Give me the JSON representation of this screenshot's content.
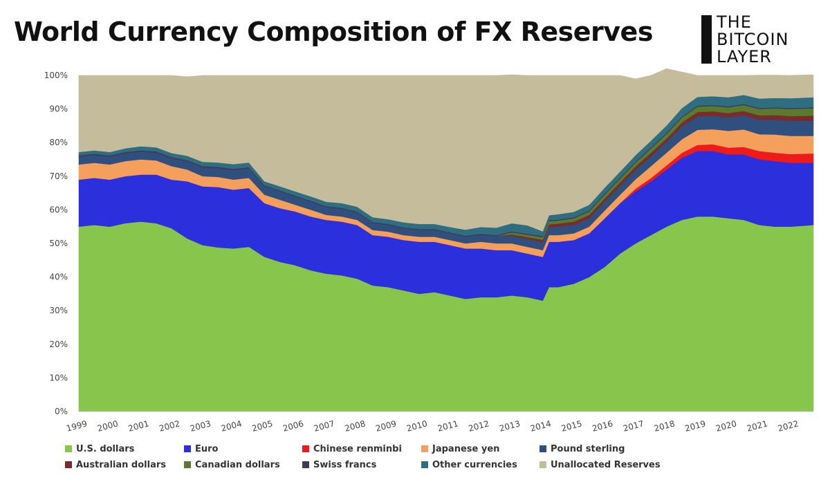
{
  "title": "World Currency Composition of FX Reserves",
  "logo": {
    "line1": "THE",
    "line2": "BITCOIN",
    "line3": "LAYER"
  },
  "chart_data": {
    "type": "area",
    "stacked": true,
    "title": "World Currency Composition of FX Reserves",
    "xlabel": "",
    "ylabel": "",
    "ylim": [
      0,
      100
    ],
    "xlim": [
      1999.0,
      2022.75
    ],
    "y_tick_labels": [
      "0%",
      "10%",
      "20%",
      "30%",
      "40%",
      "50%",
      "60%",
      "70%",
      "80%",
      "90%",
      "100%"
    ],
    "x_tick_labels": [
      "1999",
      "2000",
      "2001",
      "2002",
      "2003",
      "2004",
      "2005",
      "2006",
      "2007",
      "2008",
      "2009",
      "2010",
      "2011",
      "2012",
      "2013",
      "2014",
      "2015",
      "2016",
      "2017",
      "2018",
      "2019",
      "2020",
      "2021",
      "2022"
    ],
    "legend_position": "bottom",
    "x": [
      1999.0,
      1999.5,
      2000.0,
      2000.5,
      2001.0,
      2001.5,
      2002.0,
      2002.5,
      2003.0,
      2003.5,
      2004.0,
      2004.5,
      2005.0,
      2005.5,
      2006.0,
      2006.5,
      2007.0,
      2007.5,
      2008.0,
      2008.5,
      2009.0,
      2009.5,
      2010.0,
      2010.5,
      2011.0,
      2011.5,
      2012.0,
      2012.5,
      2013.0,
      2013.5,
      2014.0,
      2014.2,
      2014.5,
      2015.0,
      2015.5,
      2016.0,
      2016.5,
      2017.0,
      2017.5,
      2018.0,
      2018.5,
      2019.0,
      2019.5,
      2020.0,
      2020.5,
      2021.0,
      2021.5,
      2022.0,
      2022.75
    ],
    "series": [
      {
        "name": "U.S. dollars",
        "color": "#87c54d",
        "values": [
          55,
          55.5,
          55,
          56,
          56.5,
          56,
          54.5,
          51.5,
          49.5,
          48.8,
          48.5,
          49,
          46,
          44.5,
          43.5,
          42,
          41,
          40.5,
          39.5,
          37.5,
          37,
          36,
          35,
          35.5,
          34.5,
          33.5,
          34,
          34,
          34.5,
          34,
          33,
          37,
          37,
          38,
          40,
          43,
          47,
          50,
          52.5,
          55,
          57,
          58,
          58,
          57.5,
          57,
          55.5,
          55,
          55,
          55.5
        ]
      },
      {
        "name": "Euro",
        "color": "#2b2fdc",
        "values": [
          14,
          14,
          14,
          14,
          14,
          14.5,
          14.5,
          17,
          17.5,
          18,
          17.5,
          17.5,
          16,
          16,
          16,
          16,
          16,
          16,
          16,
          15,
          15,
          15,
          15.5,
          15,
          15,
          15,
          14.5,
          14,
          13.5,
          13,
          13,
          13.5,
          13.5,
          13,
          13,
          14.5,
          15,
          15.5,
          16,
          17,
          18.5,
          19.5,
          19.5,
          19,
          19.5,
          19.5,
          19.5,
          19,
          18.5
        ]
      },
      {
        "name": "Chinese renminbi",
        "color": "#ee1b1b",
        "values": [
          0,
          0,
          0,
          0,
          0,
          0,
          0,
          0,
          0,
          0,
          0,
          0,
          0,
          0,
          0,
          0,
          0,
          0,
          0,
          0,
          0,
          0,
          0,
          0,
          0,
          0,
          0,
          0,
          0,
          0,
          0,
          0,
          0,
          0,
          0,
          0,
          0,
          0.8,
          1,
          1.2,
          1.5,
          1.8,
          2,
          2,
          2.2,
          2.5,
          2.5,
          2.6,
          2.8
        ]
      },
      {
        "name": "Japanese yen",
        "color": "#f4a05c",
        "values": [
          4.5,
          4.5,
          4.5,
          4.5,
          4.5,
          4.2,
          4,
          3.5,
          3,
          3,
          3,
          3,
          2.5,
          2.5,
          2,
          2,
          1.5,
          1.5,
          1.5,
          1.5,
          1.5,
          1.5,
          1.5,
          1.5,
          1.5,
          1.5,
          2,
          2,
          2,
          2,
          2,
          2,
          2,
          2,
          2,
          2.3,
          2.5,
          2.8,
          3.5,
          3.8,
          4,
          4.5,
          4.5,
          5,
          5.2,
          5,
          5.4,
          5.4,
          5.2
        ]
      },
      {
        "name": "Pound sterling",
        "color": "#2f4f7f",
        "values": [
          2.3,
          2.3,
          2.3,
          2.3,
          2.3,
          2.3,
          2.3,
          2.4,
          2.6,
          2.6,
          2.8,
          2.8,
          2.5,
          2.5,
          2.4,
          2.4,
          2.3,
          2.3,
          2.2,
          2.1,
          2,
          2,
          2,
          2,
          2,
          2,
          2.1,
          2.2,
          2.3,
          2.3,
          2.4,
          2.4,
          2.5,
          2.5,
          2.5,
          2.6,
          2.7,
          2.8,
          3,
          3.2,
          3.8,
          4,
          4,
          4,
          4.2,
          4.3,
          4.4,
          4.5,
          4.5
        ]
      },
      {
        "name": "Australian dollars",
        "color": "#7a2b2b",
        "values": [
          0,
          0,
          0,
          0,
          0,
          0,
          0,
          0,
          0,
          0,
          0,
          0,
          0,
          0,
          0,
          0,
          0,
          0,
          0,
          0,
          0,
          0,
          0,
          0,
          0,
          0,
          0,
          0,
          0.4,
          0.6,
          0.7,
          0.8,
          0.9,
          1,
          1,
          1,
          1,
          1,
          1,
          1,
          1.2,
          1.3,
          1.3,
          1.3,
          1.3,
          1.3,
          1.4,
          1.4,
          1.5
        ]
      },
      {
        "name": "Canadian dollars",
        "color": "#5a7a2e",
        "values": [
          0,
          0,
          0,
          0,
          0,
          0,
          0,
          0,
          0,
          0,
          0,
          0,
          0,
          0,
          0,
          0,
          0,
          0,
          0,
          0,
          0,
          0,
          0,
          0,
          0,
          0,
          0,
          0,
          0.6,
          0.7,
          0.8,
          0.9,
          0.9,
          1,
          1,
          1.1,
          1.1,
          1.2,
          1.3,
          1.4,
          1.5,
          1.6,
          1.6,
          1.7,
          1.8,
          1.9,
          2,
          2.1,
          2.2
        ]
      },
      {
        "name": "Swiss francs",
        "color": "#3e3a5c",
        "values": [
          0.4,
          0.4,
          0.4,
          0.4,
          0.4,
          0.4,
          0.4,
          0.4,
          0.4,
          0.4,
          0.4,
          0.4,
          0.3,
          0.3,
          0.3,
          0.3,
          0.3,
          0.3,
          0.3,
          0.3,
          0.3,
          0.3,
          0.3,
          0.3,
          0.3,
          0.3,
          0.3,
          0.3,
          0.3,
          0.3,
          0.3,
          0.3,
          0.3,
          0.3,
          0.3,
          0.3,
          0.3,
          0.3,
          0.3,
          0.3,
          0.3,
          0.3,
          0.3,
          0.3,
          0.3,
          0.3,
          0.3,
          0.3,
          0.3
        ]
      },
      {
        "name": "Other currencies",
        "color": "#2e6e80",
        "values": [
          1,
          1,
          1,
          1.1,
          1.2,
          1.2,
          1.2,
          1.3,
          1.3,
          1.3,
          1.4,
          1.4,
          1.2,
          1.2,
          1.3,
          1.3,
          1.3,
          1.4,
          1.4,
          1.4,
          1.4,
          1.5,
          1.5,
          1.5,
          1.6,
          1.8,
          2,
          2.2,
          2.4,
          2.5,
          1.4,
          1.5,
          1.6,
          1.6,
          1.7,
          1.8,
          1.8,
          1.9,
          2,
          2.2,
          2.5,
          2.6,
          2.6,
          2.7,
          2.7,
          2.8,
          2.8,
          2.9,
          3
        ]
      },
      {
        "name": "Unallocated Reserves",
        "color": "#c5bc9c",
        "values": [
          22.8,
          22.3,
          22.8,
          21.7,
          21.1,
          21.4,
          23.1,
          23.5,
          25.7,
          25.9,
          26.4,
          25.9,
          31.5,
          33,
          34.5,
          36,
          37.6,
          38,
          39.1,
          42.2,
          42.8,
          43.7,
          44.2,
          44.2,
          45.1,
          45.9,
          45.1,
          45.3,
          44.2,
          44.6,
          46.4,
          41.6,
          41.3,
          40.6,
          38.5,
          33.4,
          28.6,
          22.7,
          19.4,
          16.9,
          10.7,
          6.4,
          6.2,
          6.5,
          5.8,
          7,
          6.8,
          6.8,
          6.7
        ]
      }
    ]
  }
}
